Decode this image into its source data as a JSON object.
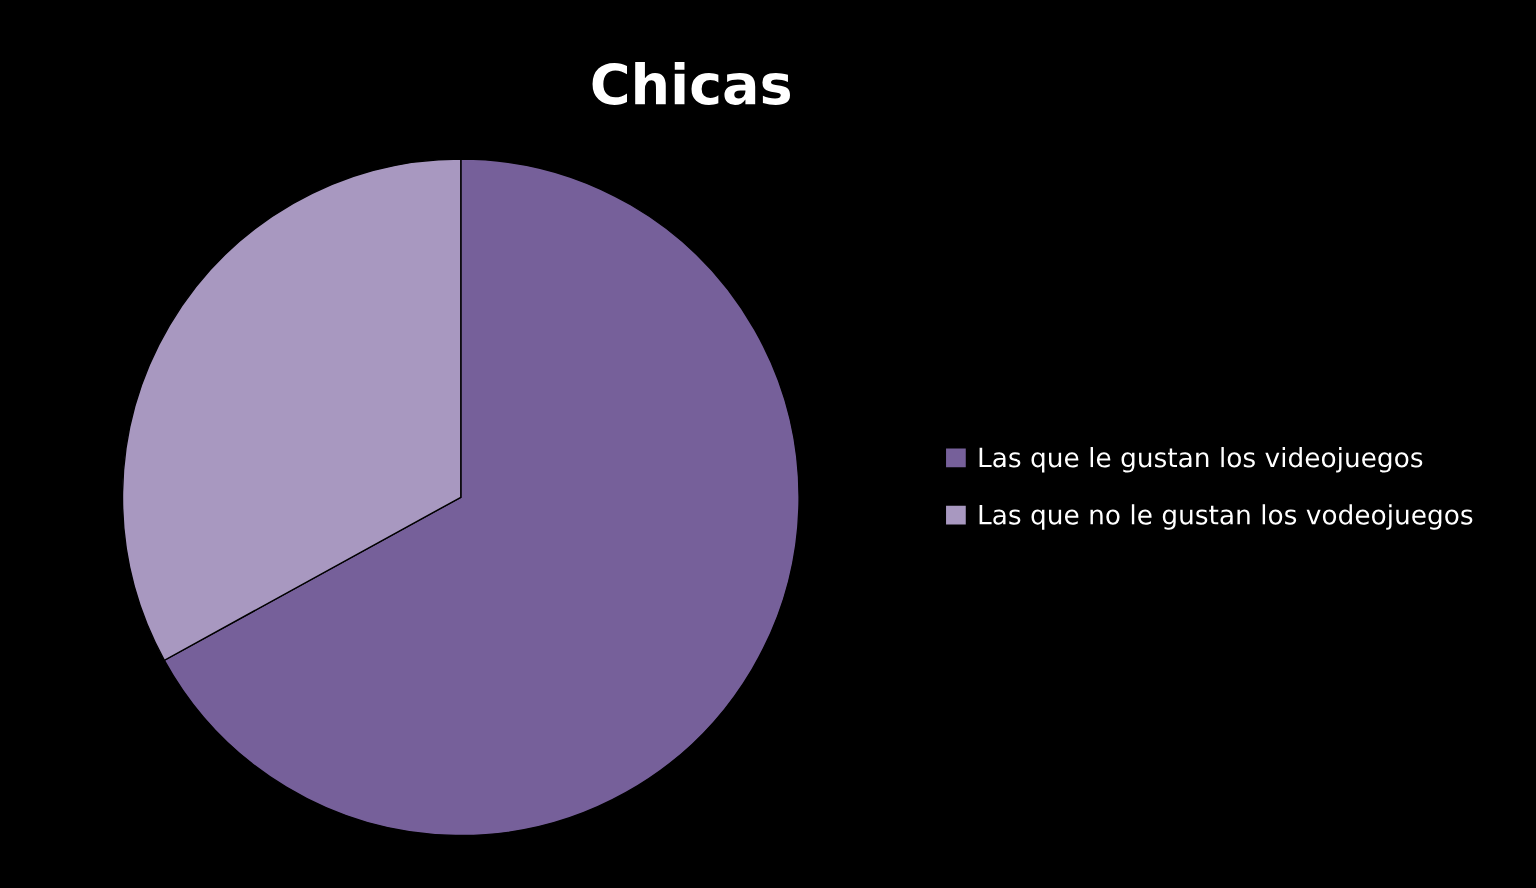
{
  "chart_data": {
    "type": "pie",
    "title": "Chicas",
    "categories": [
      "Las que le gustan los videojuegos",
      "Las que no le gustan los vodeojuegos"
    ],
    "values": [
      67,
      33
    ],
    "colors": [
      "#76609a",
      "#a898c0"
    ],
    "legend": "right"
  }
}
